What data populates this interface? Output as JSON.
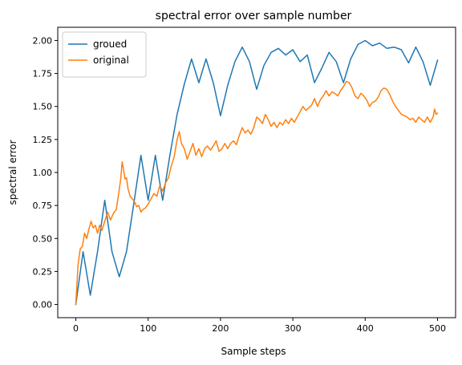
{
  "chart_data": {
    "type": "line",
    "title": "spectral error over sample number",
    "xlabel": "Sample steps",
    "ylabel": "spectral error",
    "xlim": [
      -25,
      525
    ],
    "ylim": [
      -0.1,
      2.1
    ],
    "xticks": [
      0,
      100,
      200,
      300,
      400,
      500
    ],
    "yticks": [
      0.0,
      0.25,
      0.5,
      0.75,
      1.0,
      1.25,
      1.5,
      1.75,
      2.0
    ],
    "ytick_labels": [
      "0.00",
      "0.25",
      "0.50",
      "0.75",
      "1.00",
      "1.25",
      "1.50",
      "1.75",
      "2.00"
    ],
    "grid": false,
    "legend": "top-left",
    "series": [
      {
        "name": "groued",
        "color": "#1f77b4",
        "x": [
          0,
          10,
          20,
          30,
          40,
          50,
          60,
          70,
          80,
          90,
          100,
          110,
          120,
          130,
          140,
          150,
          160,
          170,
          180,
          190,
          200,
          210,
          220,
          230,
          240,
          250,
          260,
          270,
          280,
          290,
          300,
          310,
          320,
          330,
          340,
          350,
          360,
          370,
          380,
          390,
          400,
          410,
          420,
          430,
          440,
          450,
          460,
          470,
          480,
          490,
          500
        ],
        "y": [
          0.0,
          0.4,
          0.07,
          0.4,
          0.79,
          0.4,
          0.21,
          0.4,
          0.76,
          1.13,
          0.79,
          1.13,
          0.79,
          1.13,
          1.44,
          1.67,
          1.86,
          1.68,
          1.86,
          1.68,
          1.43,
          1.66,
          1.84,
          1.95,
          1.84,
          1.63,
          1.81,
          1.91,
          1.94,
          1.89,
          1.93,
          1.84,
          1.89,
          1.68,
          1.79,
          1.91,
          1.84,
          1.68,
          1.86,
          1.97,
          2.0,
          1.96,
          1.98,
          1.94,
          1.95,
          1.93,
          1.83,
          1.95,
          1.84,
          1.66,
          1.85
        ]
      },
      {
        "name": "original",
        "color": "#ff7f0e",
        "x": [
          0,
          3,
          6,
          9,
          12,
          15,
          18,
          21,
          24,
          27,
          30,
          33,
          36,
          40,
          44,
          48,
          52,
          56,
          60,
          62,
          64,
          66,
          68,
          70,
          72,
          75,
          78,
          81,
          84,
          87,
          90,
          93,
          96,
          100,
          104,
          108,
          112,
          116,
          120,
          124,
          128,
          132,
          136,
          140,
          143,
          146,
          150,
          154,
          158,
          162,
          166,
          170,
          174,
          178,
          182,
          186,
          190,
          194,
          198,
          202,
          206,
          210,
          214,
          218,
          222,
          226,
          230,
          234,
          238,
          242,
          246,
          250,
          254,
          258,
          262,
          266,
          270,
          274,
          278,
          282,
          286,
          290,
          294,
          298,
          302,
          306,
          310,
          314,
          318,
          322,
          326,
          330,
          334,
          338,
          342,
          346,
          350,
          354,
          358,
          362,
          366,
          370,
          374,
          378,
          382,
          386,
          390,
          394,
          398,
          402,
          406,
          410,
          414,
          418,
          422,
          426,
          430,
          434,
          438,
          442,
          446,
          450,
          454,
          458,
          462,
          466,
          470,
          474,
          478,
          482,
          486,
          490,
          494,
          496,
          498,
          500
        ],
        "y": [
          0.0,
          0.3,
          0.42,
          0.44,
          0.54,
          0.5,
          0.57,
          0.63,
          0.58,
          0.6,
          0.54,
          0.6,
          0.56,
          0.63,
          0.7,
          0.64,
          0.69,
          0.72,
          0.87,
          0.95,
          1.08,
          1.02,
          0.95,
          0.96,
          0.88,
          0.82,
          0.8,
          0.78,
          0.74,
          0.75,
          0.7,
          0.72,
          0.73,
          0.76,
          0.8,
          0.84,
          0.82,
          0.9,
          0.86,
          0.92,
          0.96,
          1.05,
          1.12,
          1.25,
          1.31,
          1.22,
          1.18,
          1.1,
          1.16,
          1.22,
          1.13,
          1.18,
          1.12,
          1.18,
          1.2,
          1.17,
          1.2,
          1.24,
          1.16,
          1.18,
          1.22,
          1.18,
          1.22,
          1.24,
          1.21,
          1.28,
          1.34,
          1.3,
          1.32,
          1.29,
          1.34,
          1.42,
          1.4,
          1.37,
          1.44,
          1.4,
          1.35,
          1.38,
          1.34,
          1.38,
          1.36,
          1.4,
          1.37,
          1.41,
          1.38,
          1.42,
          1.46,
          1.5,
          1.47,
          1.49,
          1.51,
          1.56,
          1.5,
          1.55,
          1.58,
          1.62,
          1.58,
          1.61,
          1.6,
          1.58,
          1.62,
          1.65,
          1.69,
          1.68,
          1.64,
          1.58,
          1.56,
          1.6,
          1.58,
          1.55,
          1.5,
          1.53,
          1.54,
          1.57,
          1.62,
          1.64,
          1.63,
          1.59,
          1.54,
          1.5,
          1.47,
          1.44,
          1.43,
          1.42,
          1.4,
          1.41,
          1.38,
          1.42,
          1.4,
          1.38,
          1.42,
          1.38,
          1.42,
          1.48,
          1.44,
          1.45
        ]
      }
    ]
  }
}
